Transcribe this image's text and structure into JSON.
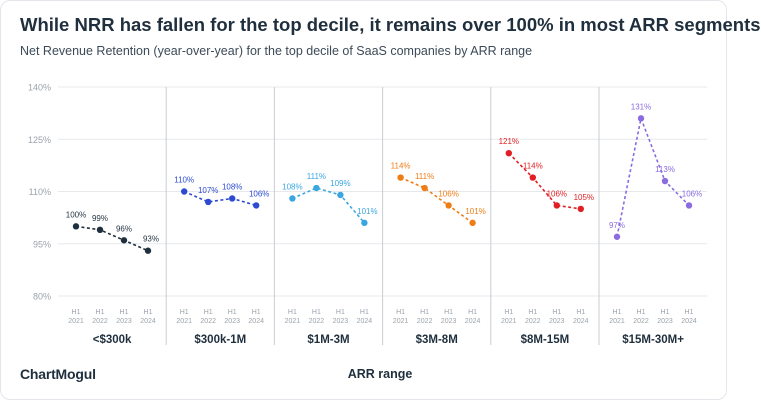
{
  "header": {
    "title": "While NRR has fallen for the top decile, it remains over 100% in most ARR segments",
    "subtitle": "Net Revenue Retention (year-over-year) for the top decile of SaaS companies by ARR range"
  },
  "footer": {
    "logo": "ChartMogul",
    "xlabel": "ARR range"
  },
  "chart_data": {
    "type": "line",
    "title": "While NRR has fallen for the top decile, it remains over 100% in most ARR segments",
    "subtitle": "Net Revenue Retention (year-over-year) for the top decile of SaaS companies by ARR range",
    "xlabel": "ARR range",
    "ylabel": "",
    "ylim": [
      80,
      140
    ],
    "yticks": [
      80,
      95,
      110,
      125,
      140
    ],
    "ytick_labels": [
      "80%",
      "95%",
      "110%",
      "125%",
      "140%"
    ],
    "grid": true,
    "x_period_top": "H1",
    "x": [
      "2021",
      "2022",
      "2023",
      "2024"
    ],
    "line_style": "dashed",
    "panels": [
      {
        "label": "<$300k",
        "color": "#1f2f3d",
        "values": [
          100,
          99,
          96,
          93
        ],
        "value_labels": [
          "100%",
          "99%",
          "96%",
          "93%"
        ]
      },
      {
        "label": "$300k-1M",
        "color": "#2d4bd0",
        "values": [
          110,
          107,
          108,
          106
        ],
        "value_labels": [
          "110%",
          "107%",
          "108%",
          "106%"
        ]
      },
      {
        "label": "$1M-3M",
        "color": "#3aa6e0",
        "values": [
          108,
          111,
          109,
          101
        ],
        "value_labels": [
          "108%",
          "111%",
          "109%",
          "101%"
        ]
      },
      {
        "label": "$3M-8M",
        "color": "#ef7d15",
        "values": [
          114,
          111,
          106,
          101
        ],
        "value_labels": [
          "114%",
          "111%",
          "106%",
          "101%"
        ]
      },
      {
        "label": "$8M-15M",
        "color": "#e01e24",
        "values": [
          121,
          114,
          106,
          105
        ],
        "value_labels": [
          "121%",
          "114%",
          "106%",
          "105%"
        ]
      },
      {
        "label": "$15M-30M+",
        "color": "#8a6be0",
        "values": [
          97,
          131,
          113,
          106
        ],
        "value_labels": [
          "97%",
          "131%",
          "113%",
          "106%"
        ]
      }
    ]
  }
}
